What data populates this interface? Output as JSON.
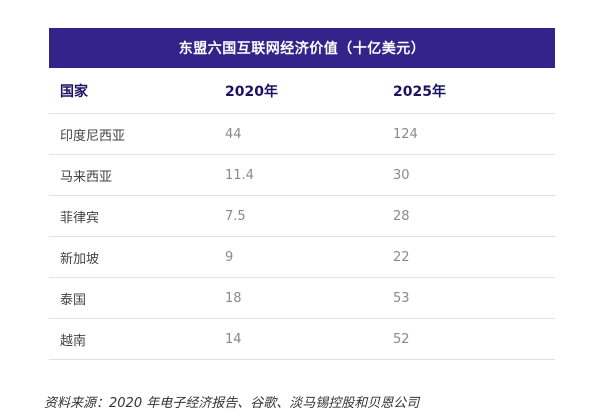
{
  "chart_data": {
    "type": "table",
    "title": "东盟六国互联网经济价值（十亿美元）",
    "columns": [
      "国家",
      "2020年",
      "2025年"
    ],
    "rows": [
      {
        "country": "印度尼西亚",
        "y2020": "44",
        "y2025": "124"
      },
      {
        "country": "马来西亚",
        "y2020": "11.4",
        "y2025": "30"
      },
      {
        "country": "菲律宾",
        "y2020": "7.5",
        "y2025": "28"
      },
      {
        "country": "新加坡",
        "y2020": "9",
        "y2025": "22"
      },
      {
        "country": "泰国",
        "y2020": "18",
        "y2025": "53"
      },
      {
        "country": "越南",
        "y2020": "14",
        "y2025": "52"
      }
    ]
  },
  "source": "资料来源：2020 年电子经济报告、谷歌、淡马锡控股和贝恩公司",
  "colors": {
    "header_bg": "#33238a",
    "header_text": "#ffffff",
    "column_header_text": "#1b1464",
    "divider": "#e2e2e2"
  }
}
